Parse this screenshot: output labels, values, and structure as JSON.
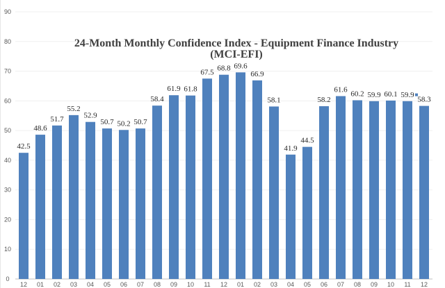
{
  "chart_data": {
    "type": "bar",
    "title_line1": "24-Month Monthly Confidence Index - Equipment Finance Industry",
    "title_line2": "(MCI-EFI)",
    "categories": [
      "12",
      "01",
      "02",
      "03",
      "04",
      "05",
      "06",
      "07",
      "08",
      "09",
      "10",
      "11",
      "12",
      "01",
      "02",
      "03",
      "04",
      "05",
      "06",
      "07",
      "08",
      "09",
      "10",
      "11",
      "12"
    ],
    "values": [
      42.5,
      48.6,
      51.7,
      55.2,
      52.9,
      50.7,
      50.2,
      50.7,
      58.4,
      61.9,
      61.8,
      67.5,
      68.8,
      69.6,
      66.9,
      58.1,
      41.9,
      44.5,
      58.2,
      61.6,
      60.2,
      59.9,
      60.1,
      59.9,
      58.3
    ],
    "ylim": [
      0,
      90
    ],
    "yticks": [
      0,
      10,
      20,
      30,
      40,
      50,
      60,
      70,
      80,
      90
    ],
    "grid": true,
    "xlabel": "",
    "ylabel": "",
    "bar_color": "#4f81bd"
  }
}
